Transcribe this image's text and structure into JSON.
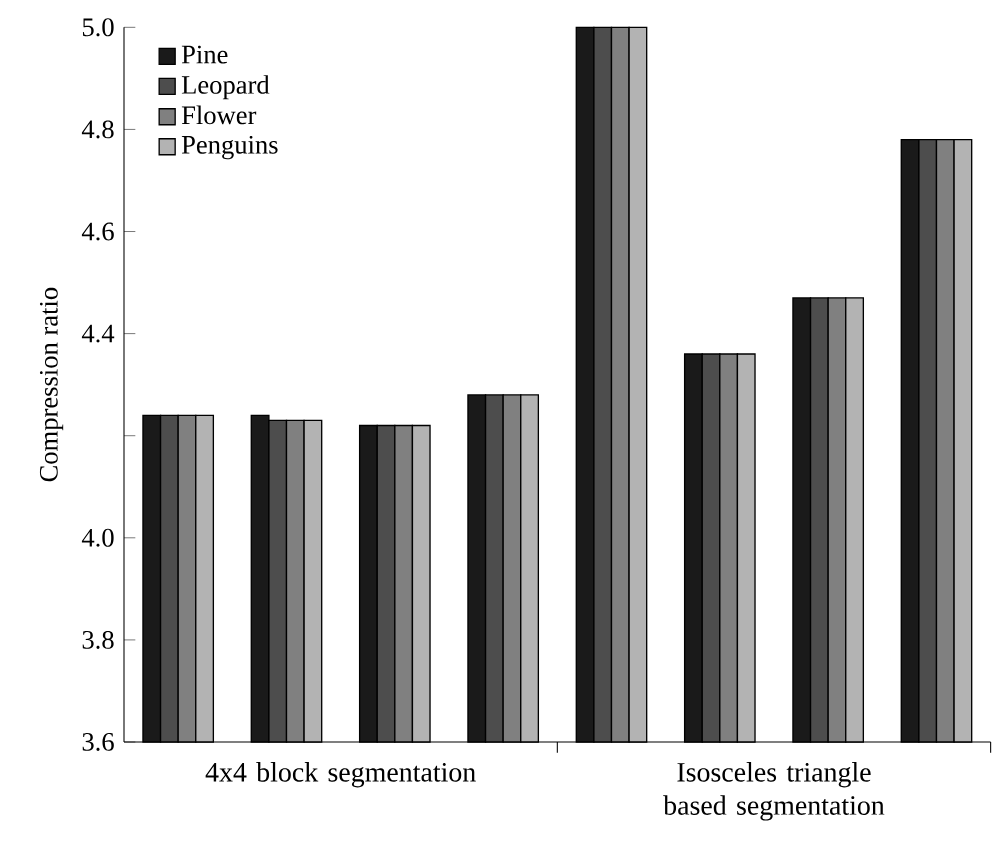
{
  "chart_data": {
    "type": "bar",
    "ylabel": "Compression ratio",
    "categories": [
      null,
      null,
      null,
      null,
      null,
      null,
      null,
      null
    ],
    "series": [
      {
        "name": "Pine",
        "color": "#1a1a1a",
        "values": [
          4.24,
          4.24,
          4.22,
          4.28,
          5.0,
          4.36,
          4.47,
          4.78
        ]
      },
      {
        "name": "Leopard",
        "color": "#4d4d4d",
        "values": [
          4.24,
          4.23,
          4.22,
          4.28,
          5.0,
          4.36,
          4.47,
          4.78
        ]
      },
      {
        "name": "Flower",
        "color": "#808080",
        "values": [
          4.24,
          4.23,
          4.22,
          4.28,
          5.0,
          4.36,
          4.47,
          4.78
        ]
      },
      {
        "name": "Penguins",
        "color": "#b3b3b3",
        "values": [
          4.24,
          4.23,
          4.22,
          4.28,
          5.0,
          4.36,
          4.47,
          4.78
        ]
      }
    ],
    "ylim": [
      3.6,
      5.0
    ],
    "yticks": [
      3.6,
      3.8,
      {
        "value": 4.0,
        "label": "4.0"
      },
      {
        "value": 4.2,
        "label": null
      },
      4.4,
      4.6,
      4.8,
      {
        "value": 5.0,
        "label": "5.0"
      }
    ],
    "legend": "top left",
    "annotations": [
      "4x4 block segmentation",
      "Isosceles triangle based segmentation"
    ]
  }
}
